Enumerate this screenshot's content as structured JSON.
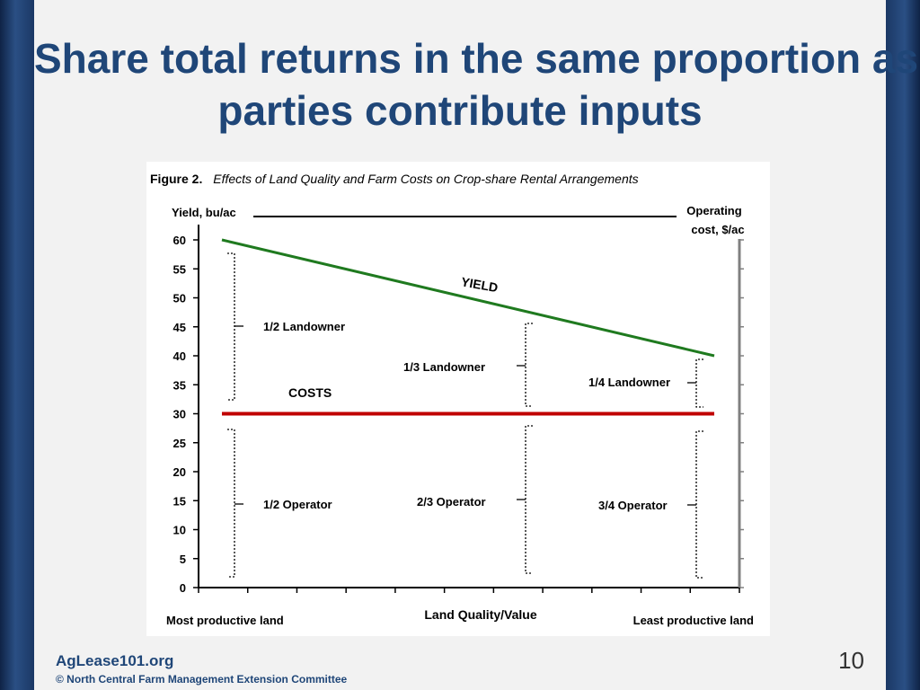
{
  "slide": {
    "title_line1": "Share total returns in the same proportion as",
    "title_line2": "parties contribute inputs",
    "footer_site": "AgLease101.org",
    "footer_copy": "© North Central Farm Management Extension Committee",
    "page_number": "10"
  },
  "figure": {
    "label": "Figure 2.",
    "caption": "Effects of Land Quality and Farm Costs on Crop-share Rental Arrangements"
  },
  "chart_data": {
    "type": "line",
    "ylabel_left": "Yield, bu/ac",
    "ylabel_right_line1": "Operating",
    "ylabel_right_line2": "cost, $/ac",
    "xlabel": "Land Quality/Value",
    "x_left_label": "Most productive land",
    "x_right_label": "Least productive land",
    "ylim": [
      0,
      60
    ],
    "yticks": [
      "0",
      "5",
      "10",
      "15",
      "20",
      "25",
      "30",
      "35",
      "40",
      "45",
      "50",
      "55",
      "60"
    ],
    "series": [
      {
        "name": "YIELD",
        "start": 60,
        "end": 40,
        "color": "#1f7a1f"
      },
      {
        "name": "COSTS",
        "start": 30,
        "end": 30,
        "color": "#c00000"
      }
    ],
    "annotations": {
      "landowner": [
        "1/2 Landowner",
        "1/3 Landowner",
        "1/4 Landowner"
      ],
      "operator": [
        "1/2 Operator",
        "2/3 Operator",
        "3/4 Operator"
      ]
    }
  }
}
